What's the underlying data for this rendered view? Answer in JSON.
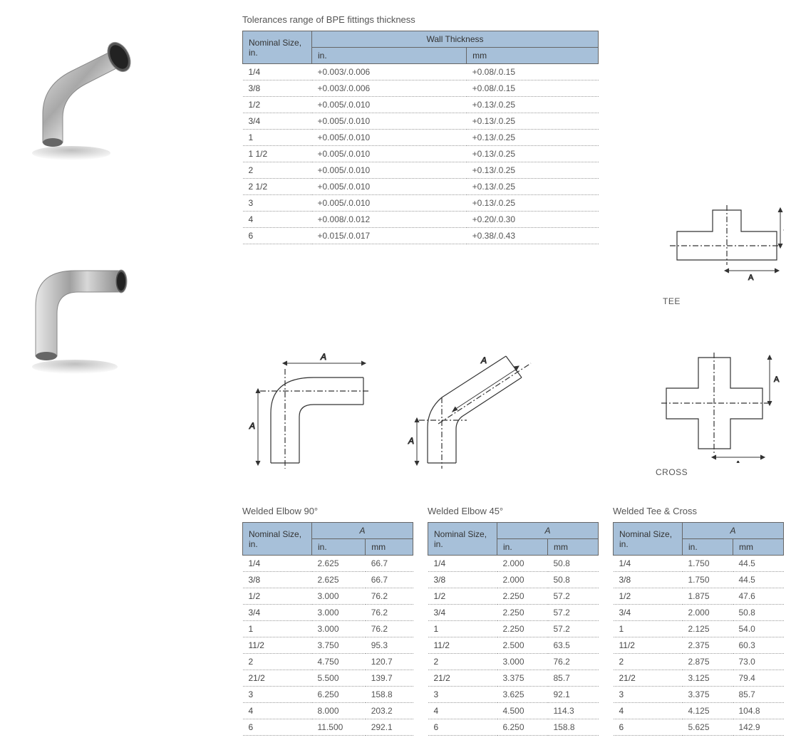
{
  "tolerances": {
    "title": "Tolerances range of BPE fittings thickness",
    "header": {
      "size": "Nominal Size, in.",
      "wall": "Wall Thickness",
      "in": "in.",
      "mm": "mm"
    },
    "rows": [
      {
        "size": "1/4",
        "in": "+0.003/.0.006",
        "mm": "+0.08/.0.15"
      },
      {
        "size": "3/8",
        "in": "+0.003/.0.006",
        "mm": "+0.08/.0.15"
      },
      {
        "size": "1/2",
        "in": "+0.005/.0.010",
        "mm": "+0.13/.0.25"
      },
      {
        "size": "3/4",
        "in": "+0.005/.0.010",
        "mm": "+0.13/.0.25"
      },
      {
        "size": "1",
        "in": "+0.005/.0.010",
        "mm": "+0.13/.0.25"
      },
      {
        "size": "1 1/2",
        "in": "+0.005/.0.010",
        "mm": "+0.13/.0.25"
      },
      {
        "size": "2",
        "in": "+0.005/.0.010",
        "mm": "+0.13/.0.25"
      },
      {
        "size": "2 1/2",
        "in": "+0.005/.0.010",
        "mm": "+0.13/.0.25"
      },
      {
        "size": "3",
        "in": "+0.005/.0.010",
        "mm": "+0.13/.0.25"
      },
      {
        "size": "4",
        "in": "+0.008/.0.012",
        "mm": "+0.20/.0.30"
      },
      {
        "size": "6",
        "in": "+0.015/.0.017",
        "mm": "+0.38/.0.43"
      }
    ]
  },
  "diagrams": {
    "tee": "TEE",
    "cross": "CROSS",
    "dim_label": "A"
  },
  "elbow90": {
    "title": "Welded Elbow 90°",
    "header": {
      "size": "Nominal Size, in.",
      "a": "A",
      "in": "in.",
      "mm": "mm"
    },
    "rows": [
      {
        "size": "1/4",
        "in": "2.625",
        "mm": "66.7"
      },
      {
        "size": "3/8",
        "in": "2.625",
        "mm": "66.7"
      },
      {
        "size": "1/2",
        "in": "3.000",
        "mm": "76.2"
      },
      {
        "size": "3/4",
        "in": "3.000",
        "mm": "76.2"
      },
      {
        "size": "1",
        "in": "3.000",
        "mm": "76.2"
      },
      {
        "size": "11/2",
        "in": "3.750",
        "mm": "95.3"
      },
      {
        "size": "2",
        "in": "4.750",
        "mm": "120.7"
      },
      {
        "size": "21/2",
        "in": "5.500",
        "mm": "139.7"
      },
      {
        "size": "3",
        "in": "6.250",
        "mm": "158.8"
      },
      {
        "size": "4",
        "in": "8.000",
        "mm": "203.2"
      },
      {
        "size": "6",
        "in": "11.500",
        "mm": "292.1"
      }
    ]
  },
  "elbow45": {
    "title": "Welded Elbow 45°",
    "header": {
      "size": "Nominal Size, in.",
      "a": "A",
      "in": "in.",
      "mm": "mm"
    },
    "rows": [
      {
        "size": "1/4",
        "in": "2.000",
        "mm": "50.8"
      },
      {
        "size": "3/8",
        "in": "2.000",
        "mm": "50.8"
      },
      {
        "size": "1/2",
        "in": "2.250",
        "mm": "57.2"
      },
      {
        "size": "3/4",
        "in": "2.250",
        "mm": "57.2"
      },
      {
        "size": "1",
        "in": "2.250",
        "mm": "57.2"
      },
      {
        "size": "11/2",
        "in": "2.500",
        "mm": "63.5"
      },
      {
        "size": "2",
        "in": "3.000",
        "mm": "76.2"
      },
      {
        "size": "21/2",
        "in": "3.375",
        "mm": "85.7"
      },
      {
        "size": "3",
        "in": "3.625",
        "mm": "92.1"
      },
      {
        "size": "4",
        "in": "4.500",
        "mm": "114.3"
      },
      {
        "size": "6",
        "in": "6.250",
        "mm": "158.8"
      }
    ]
  },
  "teecross": {
    "title": "Welded Tee & Cross",
    "header": {
      "size": "Nominal Size, in.",
      "a": "A",
      "in": "in.",
      "mm": "mm"
    },
    "rows": [
      {
        "size": "1/4",
        "in": "1.750",
        "mm": "44.5"
      },
      {
        "size": "3/8",
        "in": "1.750",
        "mm": "44.5"
      },
      {
        "size": "1/2",
        "in": "1.875",
        "mm": "47.6"
      },
      {
        "size": "3/4",
        "in": "2.000",
        "mm": "50.8"
      },
      {
        "size": "1",
        "in": "2.125",
        "mm": "54.0"
      },
      {
        "size": "11/2",
        "in": "2.375",
        "mm": "60.3"
      },
      {
        "size": "2",
        "in": "2.875",
        "mm": "73.0"
      },
      {
        "size": "21/2",
        "in": "3.125",
        "mm": "79.4"
      },
      {
        "size": "3",
        "in": "3.375",
        "mm": "85.7"
      },
      {
        "size": "4",
        "in": "4.125",
        "mm": "104.8"
      },
      {
        "size": "6",
        "in": "5.625",
        "mm": "142.9"
      }
    ]
  },
  "colors": {
    "header_bg": "#a7c0d9",
    "border": "#666666",
    "text": "#555555"
  }
}
